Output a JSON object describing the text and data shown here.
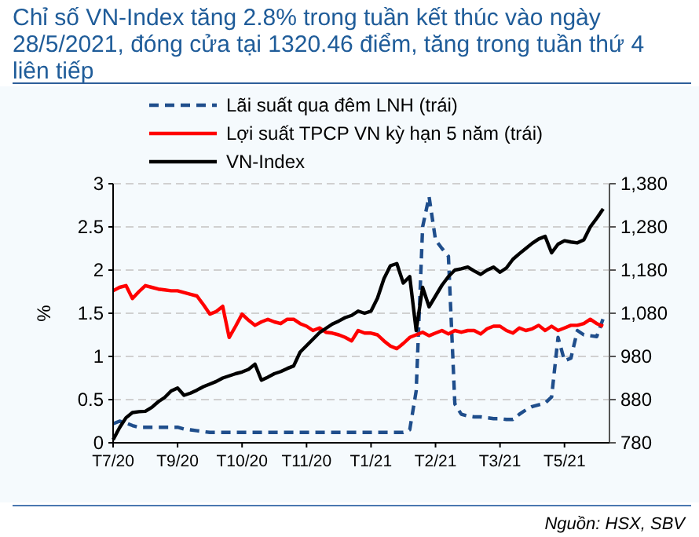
{
  "chart_data": {
    "type": "line",
    "title": "Chỉ số VN-Index tăng 2.8% trong tuần kết thúc vào ngày 28/5/2021, đóng cửa tại 1320.46 điểm, tăng trong tuần thứ 4 liên tiếp",
    "ylabel": "%",
    "annotations": [
      "Nguồn: HSX, SBV"
    ],
    "categories": [
      "T7/20",
      null,
      null,
      null,
      null,
      null,
      null,
      null,
      null,
      null,
      "T9/20",
      null,
      null,
      null,
      null,
      null,
      null,
      null,
      null,
      null,
      "T10/20",
      null,
      null,
      null,
      null,
      null,
      null,
      null,
      null,
      null,
      "T11/20",
      null,
      null,
      null,
      null,
      null,
      null,
      null,
      null,
      null,
      "T1/21",
      null,
      null,
      null,
      null,
      null,
      null,
      null,
      null,
      null,
      "T2/21",
      null,
      null,
      null,
      null,
      null,
      null,
      null,
      null,
      null,
      "T3/21",
      null,
      null,
      null,
      null,
      null,
      null,
      null,
      null,
      null,
      "T5/21",
      null,
      null,
      null,
      null,
      null,
      null
    ],
    "ylim": [
      0,
      3
    ],
    "yticks": [
      0,
      0.5,
      1,
      1.5,
      2,
      2.5,
      3
    ],
    "y2lim": [
      780,
      1380
    ],
    "y2ticks": [
      {
        "value": 780,
        "label": "780"
      },
      {
        "value": 880,
        "label": "880"
      },
      {
        "value": 980,
        "label": "980"
      },
      {
        "value": 1080,
        "label": "1,080"
      },
      {
        "value": 1180,
        "label": "1,180"
      },
      {
        "value": 1280,
        "label": "1,280"
      },
      {
        "value": 1380,
        "label": "1,380"
      }
    ],
    "grid": "y",
    "legend": "top",
    "series": [
      {
        "name": "Lãi suất qua đêm LNH (trái)",
        "color": "#1f4e8c",
        "line_style": "dashed",
        "values": [
          0.22,
          0.25,
          0.23,
          0.2,
          0.18,
          0.18,
          0.18,
          0.18,
          0.18,
          0.18,
          0.18,
          0.16,
          0.15,
          0.14,
          0.13,
          0.12,
          0.12,
          0.12,
          0.12,
          0.12,
          0.12,
          0.12,
          0.12,
          0.12,
          0.12,
          0.12,
          0.12,
          0.12,
          0.12,
          0.12,
          0.12,
          0.12,
          0.12,
          0.12,
          0.12,
          0.12,
          0.12,
          0.12,
          0.12,
          0.12,
          0.12,
          0.12,
          0.12,
          0.12,
          0.12,
          0.12,
          0.15,
          0.6,
          2.5,
          2.85,
          2.35,
          2.25,
          2.16,
          0.45,
          0.33,
          0.31,
          0.3,
          0.3,
          0.29,
          0.28,
          0.28,
          0.27,
          0.27,
          0.33,
          0.38,
          0.42,
          0.44,
          0.46,
          0.53,
          1.22,
          0.95,
          0.98,
          1.3,
          1.25,
          1.24,
          1.23,
          1.44
        ]
      },
      {
        "name": "Lợi suất TPCP VN kỳ hạn 5 năm (trái)",
        "color": "#ff0000",
        "values": [
          1.76,
          1.8,
          1.82,
          1.67,
          1.75,
          1.82,
          1.8,
          1.78,
          1.77,
          1.76,
          1.76,
          1.74,
          1.72,
          1.7,
          1.6,
          1.49,
          1.52,
          1.58,
          1.22,
          1.35,
          1.49,
          1.42,
          1.36,
          1.4,
          1.43,
          1.4,
          1.38,
          1.43,
          1.43,
          1.38,
          1.35,
          1.3,
          1.33,
          1.28,
          1.27,
          1.25,
          1.22,
          1.18,
          1.3,
          1.27,
          1.27,
          1.25,
          1.18,
          1.12,
          1.09,
          1.15,
          1.22,
          1.25,
          1.28,
          1.24,
          1.27,
          1.3,
          1.26,
          1.3,
          1.28,
          1.3,
          1.3,
          1.26,
          1.32,
          1.35,
          1.35,
          1.3,
          1.27,
          1.33,
          1.3,
          1.32,
          1.36,
          1.3,
          1.35,
          1.3,
          1.33,
          1.36,
          1.36,
          1.38,
          1.43,
          1.38,
          1.35
        ]
      },
      {
        "name": "VN-Index",
        "color": "#000000",
        "axis": "y2",
        "values": [
          787,
          815,
          838,
          850,
          852,
          853,
          862,
          875,
          885,
          900,
          907,
          890,
          895,
          902,
          910,
          916,
          922,
          930,
          935,
          940,
          944,
          950,
          962,
          925,
          932,
          940,
          945,
          952,
          958,
          990,
          1005,
          1020,
          1035,
          1045,
          1055,
          1062,
          1070,
          1075,
          1085,
          1080,
          1085,
          1115,
          1160,
          1190,
          1195,
          1150,
          1165,
          1040,
          1140,
          1095,
          1120,
          1145,
          1165,
          1180,
          1183,
          1187,
          1178,
          1170,
          1180,
          1187,
          1175,
          1185,
          1205,
          1218,
          1230,
          1242,
          1252,
          1258,
          1220,
          1240,
          1248,
          1245,
          1243,
          1250,
          1280,
          1300,
          1322
        ]
      }
    ]
  }
}
